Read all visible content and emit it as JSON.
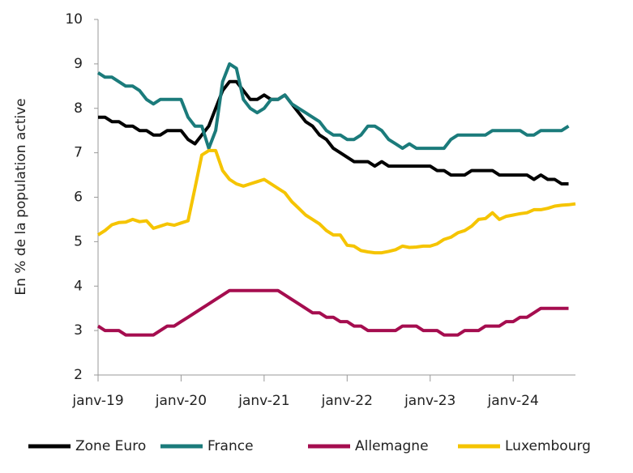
{
  "chart_data": {
    "type": "line",
    "y_label": "En % de la population active",
    "x": [
      0,
      1,
      2,
      3,
      4,
      5,
      6,
      7,
      8,
      9,
      10,
      11,
      12,
      13,
      14,
      15,
      16,
      17,
      18,
      19,
      20,
      21,
      22,
      23,
      24,
      25,
      26,
      27,
      28,
      29,
      30,
      31,
      32,
      33,
      34,
      35,
      36,
      37,
      38,
      39,
      40,
      41,
      42,
      43,
      44,
      45,
      46,
      47,
      48,
      49,
      50,
      51,
      52,
      53,
      54,
      55,
      56,
      57,
      58,
      59,
      60,
      61,
      62,
      63,
      64,
      65,
      66,
      67,
      68,
      69
    ],
    "xlim": [
      0,
      69
    ],
    "xticks": [
      {
        "value": 0,
        "label": "janv-19"
      },
      {
        "value": 12,
        "label": "janv-20"
      },
      {
        "value": 24,
        "label": "janv-21"
      },
      {
        "value": 36,
        "label": "janv-22"
      },
      {
        "value": 48,
        "label": "janv-23"
      },
      {
        "value": 60,
        "label": "janv-24"
      }
    ],
    "ylim": [
      2,
      10
    ],
    "yticks": [
      2,
      3,
      4,
      5,
      6,
      7,
      8,
      9,
      10
    ],
    "grid": false,
    "legend": "bottom",
    "series": [
      {
        "name": "Zone Euro",
        "color": "#000000",
        "values": [
          7.8,
          7.8,
          7.7,
          7.7,
          7.6,
          7.6,
          7.5,
          7.5,
          7.4,
          7.4,
          7.5,
          7.5,
          7.5,
          7.3,
          7.2,
          7.4,
          7.6,
          8.0,
          8.4,
          8.6,
          8.6,
          8.4,
          8.2,
          8.2,
          8.3,
          8.2,
          8.2,
          8.3,
          8.1,
          7.9,
          7.7,
          7.6,
          7.4,
          7.3,
          7.1,
          7.0,
          6.9,
          6.8,
          6.8,
          6.8,
          6.7,
          6.8,
          6.7,
          6.7,
          6.7,
          6.7,
          6.7,
          6.7,
          6.7,
          6.6,
          6.6,
          6.5,
          6.5,
          6.5,
          6.6,
          6.6,
          6.6,
          6.6,
          6.5,
          6.5,
          6.5,
          6.5,
          6.5,
          6.4,
          6.5,
          6.4,
          6.4,
          6.3,
          6.3,
          null
        ]
      },
      {
        "name": "France",
        "color": "#1b7b7b",
        "values": [
          8.8,
          8.7,
          8.7,
          8.6,
          8.5,
          8.5,
          8.4,
          8.2,
          8.1,
          8.2,
          8.2,
          8.2,
          8.2,
          7.8,
          7.6,
          7.6,
          7.1,
          7.5,
          8.6,
          9.0,
          8.9,
          8.2,
          8.0,
          7.9,
          8.0,
          8.2,
          8.2,
          8.3,
          8.1,
          8.0,
          7.9,
          7.8,
          7.7,
          7.5,
          7.4,
          7.4,
          7.3,
          7.3,
          7.4,
          7.6,
          7.6,
          7.5,
          7.3,
          7.2,
          7.1,
          7.2,
          7.1,
          7.1,
          7.1,
          7.1,
          7.1,
          7.3,
          7.4,
          7.4,
          7.4,
          7.4,
          7.4,
          7.5,
          7.5,
          7.5,
          7.5,
          7.5,
          7.4,
          7.4,
          7.5,
          7.5,
          7.5,
          7.5,
          7.6,
          null
        ]
      },
      {
        "name": "Allemagne",
        "color": "#a50d4f",
        "values": [
          3.1,
          3.0,
          3.0,
          3.0,
          2.9,
          2.9,
          2.9,
          2.9,
          2.9,
          3.0,
          3.1,
          3.1,
          3.2,
          3.3,
          3.4,
          3.5,
          3.6,
          3.7,
          3.8,
          3.9,
          3.9,
          3.9,
          3.9,
          3.9,
          3.9,
          3.9,
          3.9,
          3.8,
          3.7,
          3.6,
          3.5,
          3.4,
          3.4,
          3.3,
          3.3,
          3.2,
          3.2,
          3.1,
          3.1,
          3.0,
          3.0,
          3.0,
          3.0,
          3.0,
          3.1,
          3.1,
          3.1,
          3.0,
          3.0,
          3.0,
          2.9,
          2.9,
          2.9,
          3.0,
          3.0,
          3.0,
          3.1,
          3.1,
          3.1,
          3.2,
          3.2,
          3.3,
          3.3,
          3.4,
          3.5,
          3.5,
          3.5,
          3.5,
          3.5,
          null
        ]
      },
      {
        "name": "Luxembourg",
        "color": "#f5c400",
        "values": [
          5.15,
          5.25,
          5.38,
          5.43,
          5.44,
          5.5,
          5.45,
          5.47,
          5.3,
          5.35,
          5.4,
          5.37,
          5.42,
          5.47,
          6.2,
          6.95,
          7.05,
          7.05,
          6.6,
          6.4,
          6.3,
          6.25,
          6.3,
          6.35,
          6.4,
          6.3,
          6.2,
          6.1,
          5.9,
          5.75,
          5.6,
          5.5,
          5.4,
          5.25,
          5.15,
          5.15,
          4.92,
          4.9,
          4.8,
          4.77,
          4.75,
          4.75,
          4.78,
          4.82,
          4.9,
          4.87,
          4.88,
          4.9,
          4.9,
          4.95,
          5.05,
          5.1,
          5.2,
          5.25,
          5.35,
          5.5,
          5.52,
          5.65,
          5.5,
          5.57,
          5.6,
          5.63,
          5.65,
          5.72,
          5.72,
          5.75,
          5.8,
          5.82,
          5.83,
          5.85
        ]
      }
    ]
  }
}
